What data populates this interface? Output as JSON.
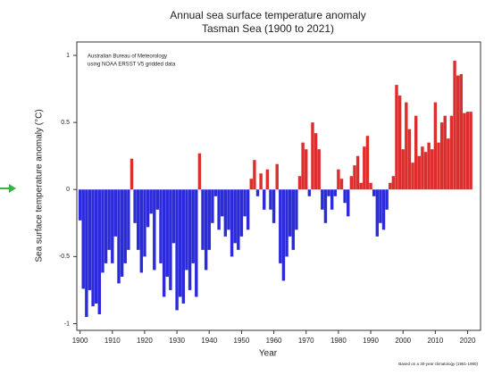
{
  "chart_data": {
    "type": "bar",
    "title": "Annual sea surface temperature anomaly",
    "subtitle": "Tasman Sea (1900 to 2021)",
    "x_label": "Year",
    "y_label": "Sea surface temperature anomaly (°C)",
    "annotations": [
      "Australian Bureau of Meteorology",
      "using NOAA ERSST V5 gridded data"
    ],
    "footnote": "Based on a 30-year climatology (1961-1990)",
    "x": [
      1900,
      1901,
      1902,
      1903,
      1904,
      1905,
      1906,
      1907,
      1908,
      1909,
      1910,
      1911,
      1912,
      1913,
      1914,
      1915,
      1916,
      1917,
      1918,
      1919,
      1920,
      1921,
      1922,
      1923,
      1924,
      1925,
      1926,
      1927,
      1928,
      1929,
      1930,
      1931,
      1932,
      1933,
      1934,
      1935,
      1936,
      1937,
      1938,
      1939,
      1940,
      1941,
      1942,
      1943,
      1944,
      1945,
      1946,
      1947,
      1948,
      1949,
      1950,
      1951,
      1952,
      1953,
      1954,
      1955,
      1956,
      1957,
      1958,
      1959,
      1960,
      1961,
      1962,
      1963,
      1964,
      1965,
      1966,
      1967,
      1968,
      1969,
      1970,
      1971,
      1972,
      1973,
      1974,
      1975,
      1976,
      1977,
      1978,
      1979,
      1980,
      1981,
      1982,
      1983,
      1984,
      1985,
      1986,
      1987,
      1988,
      1989,
      1990,
      1991,
      1992,
      1993,
      1994,
      1995,
      1996,
      1997,
      1998,
      1999,
      2000,
      2001,
      2002,
      2003,
      2004,
      2005,
      2006,
      2007,
      2008,
      2009,
      2010,
      2011,
      2012,
      2013,
      2014,
      2015,
      2016,
      2017,
      2018,
      2019,
      2020,
      2021
    ],
    "values": [
      -0.23,
      -0.74,
      -0.95,
      -0.75,
      -0.87,
      -0.85,
      -0.93,
      -0.62,
      -0.55,
      -0.45,
      -0.55,
      -0.35,
      -0.7,
      -0.65,
      -0.55,
      -0.45,
      0.23,
      -0.25,
      -0.45,
      -0.62,
      -0.5,
      -0.28,
      -0.18,
      -0.6,
      -0.15,
      -0.55,
      -0.8,
      -0.65,
      -0.75,
      -0.4,
      -0.9,
      -0.8,
      -0.85,
      -0.6,
      -0.75,
      -0.55,
      -0.8,
      0.27,
      -0.45,
      -0.6,
      -0.45,
      -0.25,
      -0.05,
      -0.3,
      -0.2,
      -0.35,
      -0.3,
      -0.5,
      -0.4,
      -0.45,
      -0.35,
      -0.2,
      -0.3,
      0.08,
      0.22,
      -0.05,
      0.12,
      -0.15,
      0.15,
      -0.15,
      -0.25,
      0.19,
      -0.55,
      -0.68,
      -0.5,
      -0.35,
      -0.45,
      -0.3,
      0.1,
      0.35,
      0.3,
      -0.05,
      0.5,
      0.42,
      0.3,
      -0.15,
      -0.25,
      -0.05,
      -0.15,
      -0.05,
      0.15,
      0.08,
      -0.1,
      -0.2,
      0.1,
      0.18,
      0.25,
      0.05,
      0.32,
      0.4,
      0.05,
      -0.05,
      -0.35,
      -0.25,
      -0.3,
      -0.15,
      0.05,
      0.1,
      0.78,
      0.7,
      0.3,
      0.65,
      0.45,
      0.2,
      0.55,
      0.25,
      0.32,
      0.28,
      0.35,
      0.3,
      0.65,
      0.35,
      0.5,
      0.55,
      0.38,
      0.55,
      0.96,
      0.85,
      0.86,
      0.57,
      0.58,
      0.58
    ],
    "positive_color": "#dd2e2e",
    "negative_color": "#2b2bd9",
    "xlim": [
      1899,
      2024
    ],
    "xticks": [
      1900,
      1910,
      1920,
      1930,
      1940,
      1950,
      1960,
      1970,
      1980,
      1990,
      2000,
      2010,
      2020
    ],
    "ylim": [
      -1.05,
      1.1
    ],
    "yticks": [
      -1,
      -0.5,
      0,
      0.5,
      1
    ]
  }
}
